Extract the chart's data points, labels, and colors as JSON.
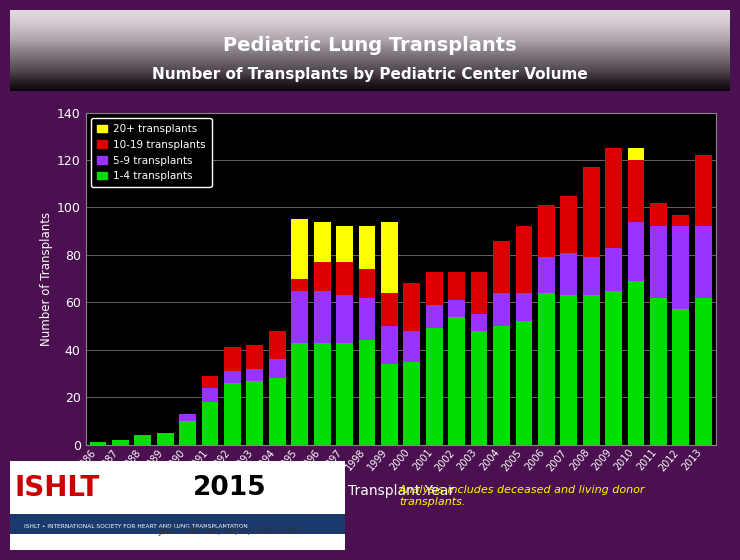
{
  "title1": "Pediatric Lung Transplants",
  "title2": "Number of Transplants by Pediatric Center Volume",
  "xlabel": "Transplant Year",
  "ylabel": "Number of Transplants",
  "bg_color": "#000000",
  "outer_bg": "#4a1050",
  "bar_colors": [
    "#00dd00",
    "#9933ff",
    "#dd0000",
    "#ffff00"
  ],
  "legend_labels": [
    "20+ transplants",
    "10-19 transplants",
    "5-9 transplants",
    "1-4 transplants"
  ],
  "years": [
    1986,
    1987,
    1988,
    1989,
    1990,
    1991,
    1992,
    1993,
    1994,
    1995,
    1996,
    1997,
    1998,
    1999,
    2000,
    2001,
    2002,
    2003,
    2004,
    2005,
    2006,
    2007,
    2008,
    2009,
    2010,
    2011,
    2012,
    2013
  ],
  "green": [
    1,
    2,
    4,
    5,
    10,
    18,
    26,
    27,
    28,
    43,
    43,
    43,
    44,
    34,
    35,
    49,
    54,
    48,
    50,
    52,
    64,
    63,
    63,
    65,
    69,
    62,
    57,
    62
  ],
  "purple": [
    0,
    0,
    0,
    0,
    3,
    6,
    5,
    5,
    8,
    22,
    22,
    20,
    18,
    16,
    13,
    10,
    7,
    7,
    14,
    12,
    15,
    18,
    16,
    18,
    25,
    30,
    35,
    30
  ],
  "red": [
    0,
    0,
    0,
    0,
    0,
    5,
    10,
    10,
    12,
    5,
    12,
    14,
    12,
    14,
    20,
    14,
    12,
    18,
    22,
    28,
    22,
    24,
    38,
    42,
    26,
    10,
    5,
    30
  ],
  "yellow": [
    0,
    0,
    0,
    0,
    0,
    0,
    0,
    0,
    0,
    25,
    17,
    15,
    18,
    30,
    0,
    0,
    0,
    0,
    0,
    0,
    0,
    0,
    0,
    0,
    5,
    0,
    0,
    0
  ],
  "ylim": [
    0,
    140
  ],
  "yticks": [
    0,
    20,
    40,
    60,
    80,
    100,
    120,
    140
  ],
  "footnote": "Analysis includes deceased and living donor\ntransplants.",
  "citation": "JHLT. 2015 Oct; 34(10): 1255-1263"
}
